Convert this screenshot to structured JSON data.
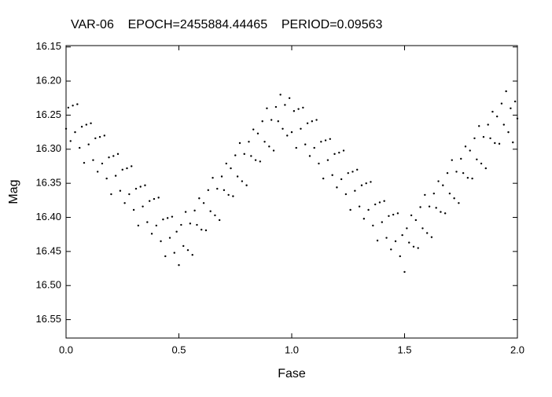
{
  "chart_data": {
    "type": "scatter",
    "title": "VAR-06    EPOCH=2455884.44465    PERIOD=0.09563",
    "x_label": "Fase",
    "y_label": "Mag",
    "xlim": [
      0,
      2
    ],
    "ylim": [
      16.577,
      16.148
    ],
    "xticks": [
      {
        "value": 0,
        "label": "0.0"
      },
      0.5,
      {
        "value": 1,
        "label": "1.0"
      },
      1.5,
      {
        "value": 2,
        "label": "2.0"
      }
    ],
    "yticks": [
      16.15,
      {
        "value": 16.2,
        "label": "16.20"
      },
      16.25,
      {
        "value": 16.3,
        "label": "16.30"
      },
      16.35,
      {
        "value": 16.4,
        "label": "16.40"
      },
      16.45,
      {
        "value": 16.5,
        "label": "16.50"
      },
      16.55
    ],
    "color": "#000000",
    "x": [
      0,
      0.01,
      0.02,
      0.03,
      0.04,
      0.05,
      0.06,
      0.07,
      0.08,
      0.09,
      0.1,
      0.11,
      0.12,
      0.13,
      0.14,
      0.15,
      0.16,
      0.17,
      0.18,
      0.19,
      0.2,
      0.21,
      0.22,
      0.23,
      0.24,
      0.25,
      0.26,
      0.27,
      0.28,
      0.29,
      0.3,
      0.31,
      0.32,
      0.33,
      0.34,
      0.35,
      0.36,
      0.37,
      0.38,
      0.39,
      0.4,
      0.41,
      0.42,
      0.43,
      0.44,
      0.45,
      0.46,
      0.47,
      0.48,
      0.49,
      0.5,
      0.51,
      0.52,
      0.53,
      0.54,
      0.55,
      0.56,
      0.57,
      0.58,
      0.59,
      0.6,
      0.61,
      0.62,
      0.63,
      0.64,
      0.65,
      0.66,
      0.67,
      0.68,
      0.69,
      0.7,
      0.71,
      0.72,
      0.73,
      0.74,
      0.75,
      0.76,
      0.77,
      0.78,
      0.79,
      0.8,
      0.81,
      0.82,
      0.83,
      0.84,
      0.85,
      0.86,
      0.87,
      0.88,
      0.89,
      0.9,
      0.91,
      0.92,
      0.93,
      0.94,
      0.95,
      0.96,
      0.97,
      0.98,
      0.99,
      1,
      1.01,
      1.02,
      1.03,
      1.04,
      1.05,
      1.06,
      1.07,
      1.08,
      1.09,
      1.1,
      1.11,
      1.12,
      1.13,
      1.14,
      1.15,
      1.16,
      1.17,
      1.18,
      1.19,
      1.2,
      1.21,
      1.22,
      1.23,
      1.24,
      1.25,
      1.26,
      1.27,
      1.28,
      1.29,
      1.3,
      1.31,
      1.32,
      1.33,
      1.34,
      1.35,
      1.36,
      1.37,
      1.38,
      1.39,
      1.4,
      1.41,
      1.42,
      1.43,
      1.44,
      1.45,
      1.46,
      1.47,
      1.48,
      1.49,
      1.5,
      1.51,
      1.52,
      1.53,
      1.54,
      1.55,
      1.56,
      1.57,
      1.58,
      1.59,
      1.6,
      1.61,
      1.62,
      1.63,
      1.64,
      1.65,
      1.66,
      1.67,
      1.68,
      1.69,
      1.7,
      1.71,
      1.72,
      1.73,
      1.74,
      1.75,
      1.76,
      1.77,
      1.78,
      1.79,
      1.8,
      1.81,
      1.82,
      1.83,
      1.84,
      1.85,
      1.86,
      1.87,
      1.88,
      1.89,
      1.9,
      1.91,
      1.92,
      1.93,
      1.94,
      1.95,
      1.96,
      1.97,
      1.98,
      1.99,
      2
    ],
    "values": [
      16.27,
      16.239,
      16.288,
      16.236,
      16.275,
      16.234,
      16.298,
      16.267,
      16.32,
      16.264,
      16.293,
      16.262,
      16.316,
      16.284,
      16.333,
      16.282,
      16.321,
      16.28,
      16.343,
      16.312,
      16.366,
      16.31,
      16.339,
      16.307,
      16.361,
      16.33,
      16.379,
      16.328,
      16.366,
      16.325,
      16.389,
      16.358,
      16.412,
      16.355,
      16.384,
      16.353,
      16.407,
      16.376,
      16.424,
      16.373,
      16.412,
      16.371,
      16.435,
      16.403,
      16.457,
      16.401,
      16.43,
      16.399,
      16.452,
      16.421,
      16.47,
      16.411,
      16.442,
      16.392,
      16.448,
      16.409,
      16.455,
      16.39,
      16.411,
      16.372,
      16.418,
      16.379,
      16.419,
      16.36,
      16.391,
      16.342,
      16.397,
      16.358,
      16.404,
      16.34,
      16.36,
      16.321,
      16.367,
      16.328,
      16.369,
      16.309,
      16.34,
      16.291,
      16.347,
      16.307,
      16.353,
      16.289,
      16.31,
      16.271,
      16.316,
      16.277,
      16.318,
      16.259,
      16.289,
      16.24,
      16.296,
      16.257,
      16.302,
      16.238,
      16.259,
      16.22,
      16.27,
      16.235,
      16.28,
      16.225,
      16.275,
      16.244,
      16.298,
      16.241,
      16.27,
      16.239,
      16.293,
      16.262,
      16.31,
      16.259,
      16.298,
      16.257,
      16.321,
      16.289,
      16.343,
      16.287,
      16.316,
      16.285,
      16.338,
      16.307,
      16.356,
      16.305,
      16.344,
      16.302,
      16.366,
      16.335,
      16.389,
      16.333,
      16.361,
      16.33,
      16.384,
      16.353,
      16.402,
      16.35,
      16.389,
      16.348,
      16.412,
      16.381,
      16.434,
      16.378,
      16.407,
      16.376,
      16.43,
      16.398,
      16.447,
      16.396,
      16.435,
      16.394,
      16.457,
      16.426,
      16.48,
      16.416,
      16.437,
      16.397,
      16.443,
      16.404,
      16.445,
      16.385,
      16.416,
      16.367,
      16.423,
      16.384,
      16.429,
      16.365,
      16.386,
      16.347,
      16.392,
      16.353,
      16.394,
      16.335,
      16.365,
      16.316,
      16.372,
      16.333,
      16.379,
      16.314,
      16.335,
      16.296,
      16.342,
      16.302,
      16.343,
      16.284,
      16.315,
      16.266,
      16.321,
      16.282,
      16.328,
      16.264,
      16.284,
      16.245,
      16.291,
      16.252,
      16.292,
      16.233,
      16.264,
      16.215,
      16.275,
      16.24,
      16.29,
      16.23,
      16.255
    ]
  }
}
